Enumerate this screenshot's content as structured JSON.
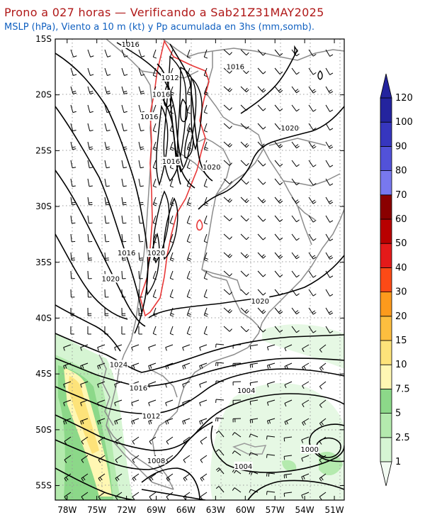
{
  "title": "Prono a 027 horas — Verificando a Sab21Z31MAY2025",
  "subtitle": "MSLP (hPa), Viento a 10 m (kt) y Pp acumulada en 3hs (mm,somb).",
  "map": {
    "lat_ticks": [
      "15S",
      "20S",
      "25S",
      "30S",
      "35S",
      "40S",
      "45S",
      "50S",
      "55S"
    ],
    "lon_ticks": [
      "78W",
      "75W",
      "72W",
      "69W",
      "66W",
      "63W",
      "60W",
      "57W",
      "54W",
      "51W"
    ],
    "pressure_labels": [
      {
        "text": "1016",
        "lon": -71.6,
        "lat": -15.5
      },
      {
        "text": "1012",
        "lon": -67.6,
        "lat": -18.5
      },
      {
        "text": "1016",
        "lon": -68.5,
        "lat": -20.0
      },
      {
        "text": "1016",
        "lon": -69.7,
        "lat": -22.0
      },
      {
        "text": "1016",
        "lon": -67.5,
        "lat": -26.0
      },
      {
        "text": "1020",
        "lon": -63.4,
        "lat": -26.5
      },
      {
        "text": "1016",
        "lon": -61.0,
        "lat": -17.5
      },
      {
        "text": "1020",
        "lon": -55.5,
        "lat": -23.0
      },
      {
        "text": "1016",
        "lon": -72.0,
        "lat": -34.2
      },
      {
        "text": "1020",
        "lon": -69.0,
        "lat": -34.2
      },
      {
        "text": "1020",
        "lon": -73.6,
        "lat": -36.5
      },
      {
        "text": "1020",
        "lon": -58.5,
        "lat": -38.5
      },
      {
        "text": "1024",
        "lon": -72.8,
        "lat": -44.2
      },
      {
        "text": "1016",
        "lon": -70.8,
        "lat": -46.3
      },
      {
        "text": "1012",
        "lon": -69.5,
        "lat": -48.8
      },
      {
        "text": "1004",
        "lon": -59.9,
        "lat": -46.5
      },
      {
        "text": "1008",
        "lon": -69.0,
        "lat": -52.8
      },
      {
        "text": "1004",
        "lon": -60.2,
        "lat": -53.3
      },
      {
        "text": "1000",
        "lon": -53.5,
        "lat": -51.8
      }
    ]
  },
  "colorbar": {
    "labels": [
      "1",
      "2.5",
      "5",
      "7.5",
      "10",
      "15",
      "20",
      "30",
      "40",
      "50",
      "60",
      "70",
      "80",
      "90",
      "100",
      "120"
    ],
    "colors": [
      "#f2fbf2",
      "#d6f5d3",
      "#b4eaae",
      "#8cd889",
      "#fff7b3",
      "#fde37a",
      "#fdbe3f",
      "#fd9a1c",
      "#fc4a16",
      "#e41a1a",
      "#b80000",
      "#8a0000",
      "#7878ee",
      "#5252d9",
      "#3636bf",
      "#24249e"
    ]
  }
}
